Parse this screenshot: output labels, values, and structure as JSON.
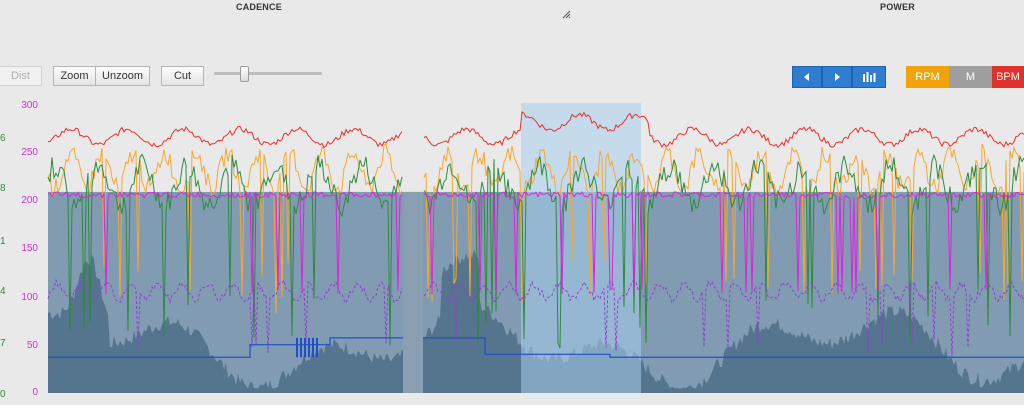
{
  "headers": {
    "cadence": "CADENCE",
    "power": "POWER"
  },
  "toolbar": {
    "dist_label": "Dist",
    "zoom_label": "Zoom",
    "unzoom_label": "Unzoom",
    "cut_label": "Cut",
    "zoom_slider_value": 0.25
  },
  "nav": {
    "prev_icon": "triangle-left-icon",
    "next_icon": "triangle-right-icon",
    "bars_icon": "bar-chart-icon"
  },
  "toggles": {
    "rpm": {
      "label": "RPM",
      "color": "#f0a30a"
    },
    "m": {
      "label": "M",
      "color": "#9e9e9e"
    },
    "bpm": {
      "label": "BPM",
      "color": "#e0312a"
    }
  },
  "y_axis_left": [
    "300",
    "250",
    "200",
    "150",
    "100",
    "50",
    "0"
  ],
  "y_axis_left2": [
    "6",
    "8",
    "1",
    "4",
    "7",
    "0"
  ],
  "colors": {
    "heart_rate": "#e8302a",
    "cadence": "#f7a72e",
    "power": "#2e8b3d",
    "magenta": "#e020e0",
    "purple": "#9040d0",
    "area": "#50708a",
    "band": "#6f8ea8",
    "selection": "#a8cdec",
    "gear": "#2050c8"
  }
}
